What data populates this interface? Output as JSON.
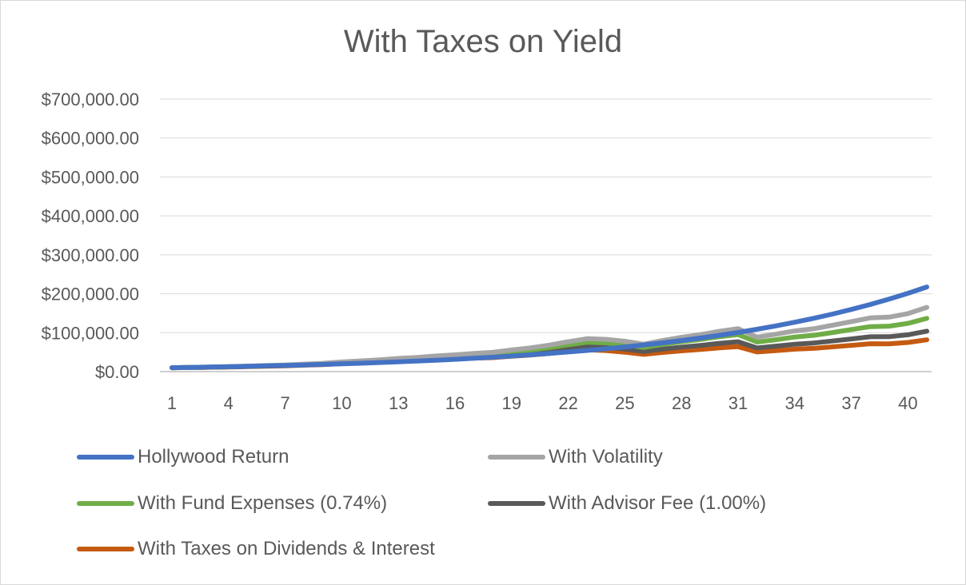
{
  "chart_data": {
    "type": "line",
    "title": "With Taxes on Yield",
    "xlabel": "",
    "ylabel": "",
    "x": [
      1,
      2,
      3,
      4,
      5,
      6,
      7,
      8,
      9,
      10,
      11,
      12,
      13,
      14,
      15,
      16,
      17,
      18,
      19,
      20,
      21,
      22,
      23,
      24,
      25,
      26,
      27,
      28,
      29,
      30,
      31,
      32,
      33,
      34,
      35,
      36,
      37,
      38,
      39,
      40,
      41
    ],
    "x_tick_labels": [
      "1",
      "4",
      "7",
      "10",
      "13",
      "16",
      "19",
      "22",
      "25",
      "28",
      "31",
      "34",
      "37",
      "40"
    ],
    "ylim": [
      0,
      700000
    ],
    "y_tick_labels": [
      "$0.00",
      "$100,000.00",
      "$200,000.00",
      "$300,000.00",
      "$400,000.00",
      "$500,000.00",
      "$600,000.00",
      "$700,000.00"
    ],
    "grid": "horizontal",
    "legend_position": "bottom",
    "series": [
      {
        "name": "Hollywood Return",
        "color": "#4472c4",
        "values": [
          10000,
          10800,
          11700,
          12600,
          13600,
          14700,
          15900,
          17100,
          18500,
          20000,
          21600,
          23300,
          25200,
          27200,
          29400,
          31700,
          34300,
          37000,
          40000,
          43200,
          46600,
          50400,
          54400,
          58700,
          63400,
          68500,
          74000,
          79900,
          86300,
          93200,
          100600,
          108700,
          117400,
          126800,
          136900,
          147800,
          159700,
          172500,
          186300,
          201200,
          217300
        ]
      },
      {
        "name": "With Volatility",
        "color": "#a5a5a5",
        "values": [
          10000,
          10900,
          11600,
          12900,
          14100,
          15600,
          16800,
          19200,
          21300,
          24800,
          27600,
          30100,
          33800,
          36500,
          40200,
          43100,
          46800,
          49500,
          55600,
          61000,
          68200,
          76800,
          84500,
          83000,
          78000,
          70500,
          79800,
          88000,
          95000,
          103500,
          110500,
          88500,
          96000,
          104500,
          110000,
          119000,
          128500,
          138000,
          140000,
          149000,
          165000
        ]
      },
      {
        "name": "With Fund Expenses (0.74%)",
        "color": "#70ad47",
        "values": [
          10000,
          10700,
          11400,
          12600,
          13700,
          15100,
          16200,
          18400,
          20300,
          23600,
          26100,
          28400,
          31700,
          34100,
          37400,
          39900,
          43100,
          45400,
          50700,
          55400,
          61600,
          68900,
          75500,
          73800,
          69000,
          62000,
          69900,
          76700,
          82500,
          89500,
          95100,
          75900,
          82000,
          88900,
          93200,
          100400,
          108000,
          115600,
          116800,
          123900,
          136700
        ]
      },
      {
        "name": "With Advisor Fee (1.00%)",
        "color": "#595959",
        "values": [
          10000,
          10600,
          11200,
          12300,
          13300,
          14500,
          15500,
          17400,
          19100,
          22000,
          24200,
          26100,
          29000,
          31000,
          33700,
          35700,
          38300,
          40100,
          44400,
          48200,
          53200,
          59000,
          64200,
          62400,
          57900,
          51700,
          57900,
          63100,
          67400,
          72700,
          76800,
          60900,
          65400,
          70400,
          73400,
          78600,
          84000,
          89400,
          89700,
          94600,
          103800
        ]
      },
      {
        "name": "With Taxes on Dividends & Interest",
        "color": "#c55a11",
        "values": [
          10000,
          10500,
          11000,
          12000,
          12900,
          14000,
          14900,
          16600,
          18100,
          20700,
          22700,
          24300,
          26800,
          28500,
          30800,
          32400,
          34600,
          36000,
          39600,
          42700,
          46900,
          51700,
          55900,
          54100,
          49900,
          44300,
          49300,
          53400,
          56800,
          60900,
          64000,
          50400,
          53800,
          57600,
          59700,
          63600,
          67600,
          71600,
          71500,
          75000,
          81800
        ]
      }
    ]
  }
}
